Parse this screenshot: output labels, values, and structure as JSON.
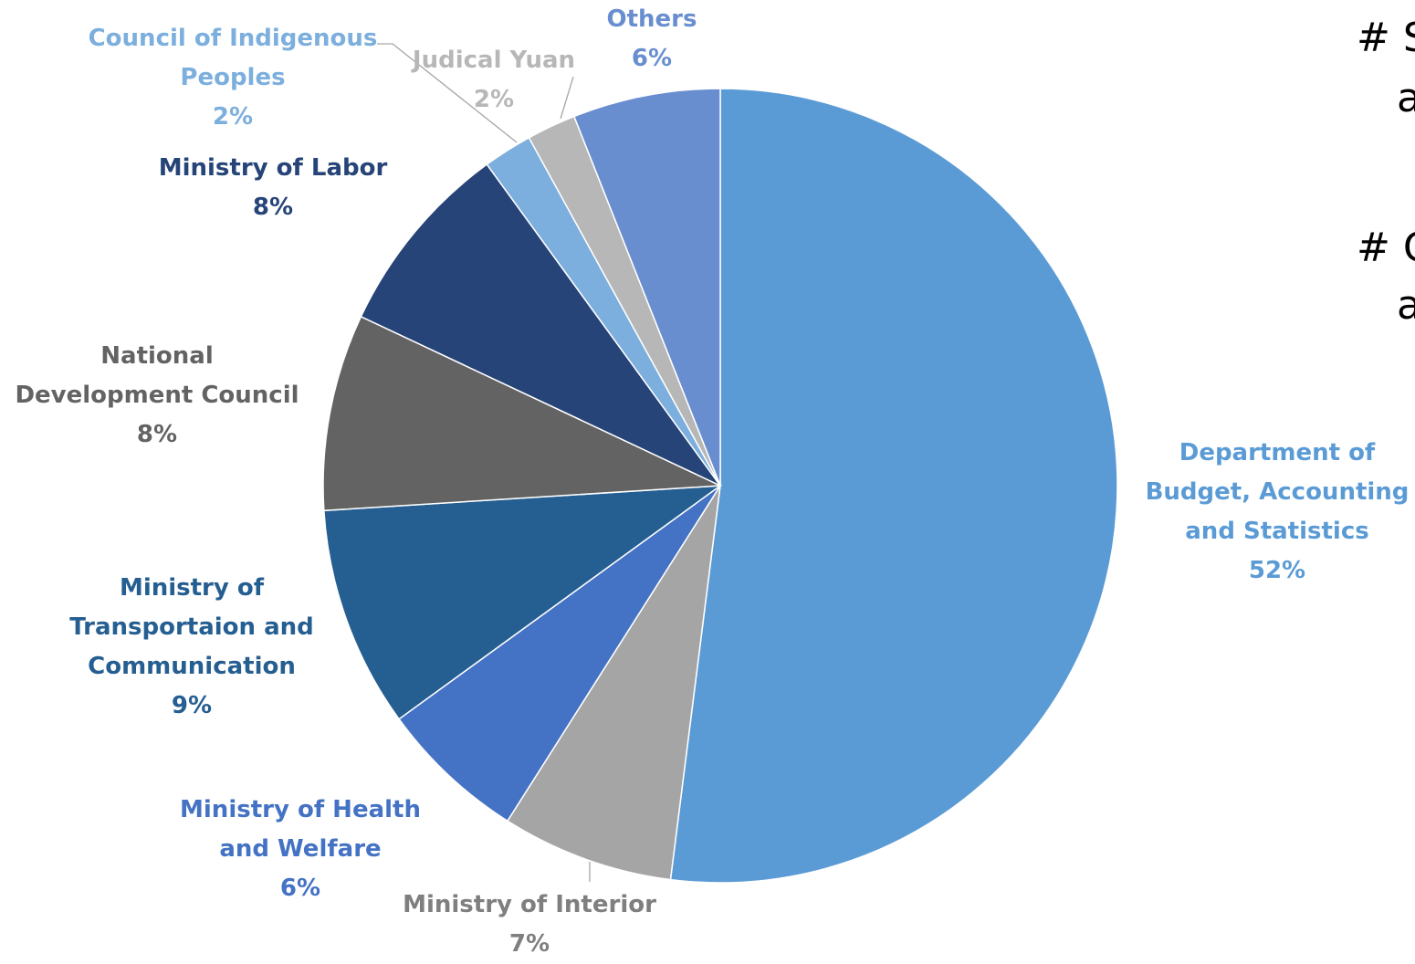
{
  "chart_data": {
    "type": "pie",
    "title": "",
    "slices": [
      {
        "name": "Department of Budget, Accounting and Statistics",
        "lines": [
          "Department of",
          "Budget, Accounting",
          "and Statistics"
        ],
        "value": 52,
        "pct_label": "52%",
        "color": "#5B9BD5",
        "label_color": "#5B9BD5"
      },
      {
        "name": "Ministry of Interior",
        "lines": [
          "Ministry of Interior"
        ],
        "value": 7,
        "pct_label": "7%",
        "color": "#A5A5A5",
        "label_color": "#7F7F7F"
      },
      {
        "name": "Ministry of Health and Welfare",
        "lines": [
          "Ministry of Health",
          "and Welfare"
        ],
        "value": 6,
        "pct_label": "6%",
        "color": "#4472C4",
        "label_color": "#4472C4"
      },
      {
        "name": "Ministry of Transportaion and Communication",
        "lines": [
          "Ministry of",
          "Transportaion and",
          "Communication"
        ],
        "value": 9,
        "pct_label": "9%",
        "color": "#255E91",
        "label_color": "#255E91"
      },
      {
        "name": "National Development Council",
        "lines": [
          "National",
          "Development Council"
        ],
        "value": 8,
        "pct_label": "8%",
        "color": "#636363",
        "label_color": "#636363"
      },
      {
        "name": "Ministry of Labor",
        "lines": [
          "Ministry of Labor"
        ],
        "value": 8,
        "pct_label": "8%",
        "color": "#264478",
        "label_color": "#264478"
      },
      {
        "name": "Council of Indigenous Peoples",
        "lines": [
          "Council of Indigenous",
          "Peoples"
        ],
        "value": 2,
        "pct_label": "2%",
        "color": "#7CAFDD",
        "label_color": "#7CAFDD"
      },
      {
        "name": "Judical Yuan",
        "lines": [
          "Judical Yuan"
        ],
        "value": 2,
        "pct_label": "2%",
        "color": "#B7B7B7",
        "label_color": "#B7B7B7"
      },
      {
        "name": "Others",
        "lines": [
          "Others"
        ],
        "value": 6,
        "pct_label": "6%",
        "color": "#698ED0",
        "label_color": "#698ED0"
      }
    ]
  },
  "side_text": [
    "# S",
    "a",
    "# C",
    "a"
  ]
}
